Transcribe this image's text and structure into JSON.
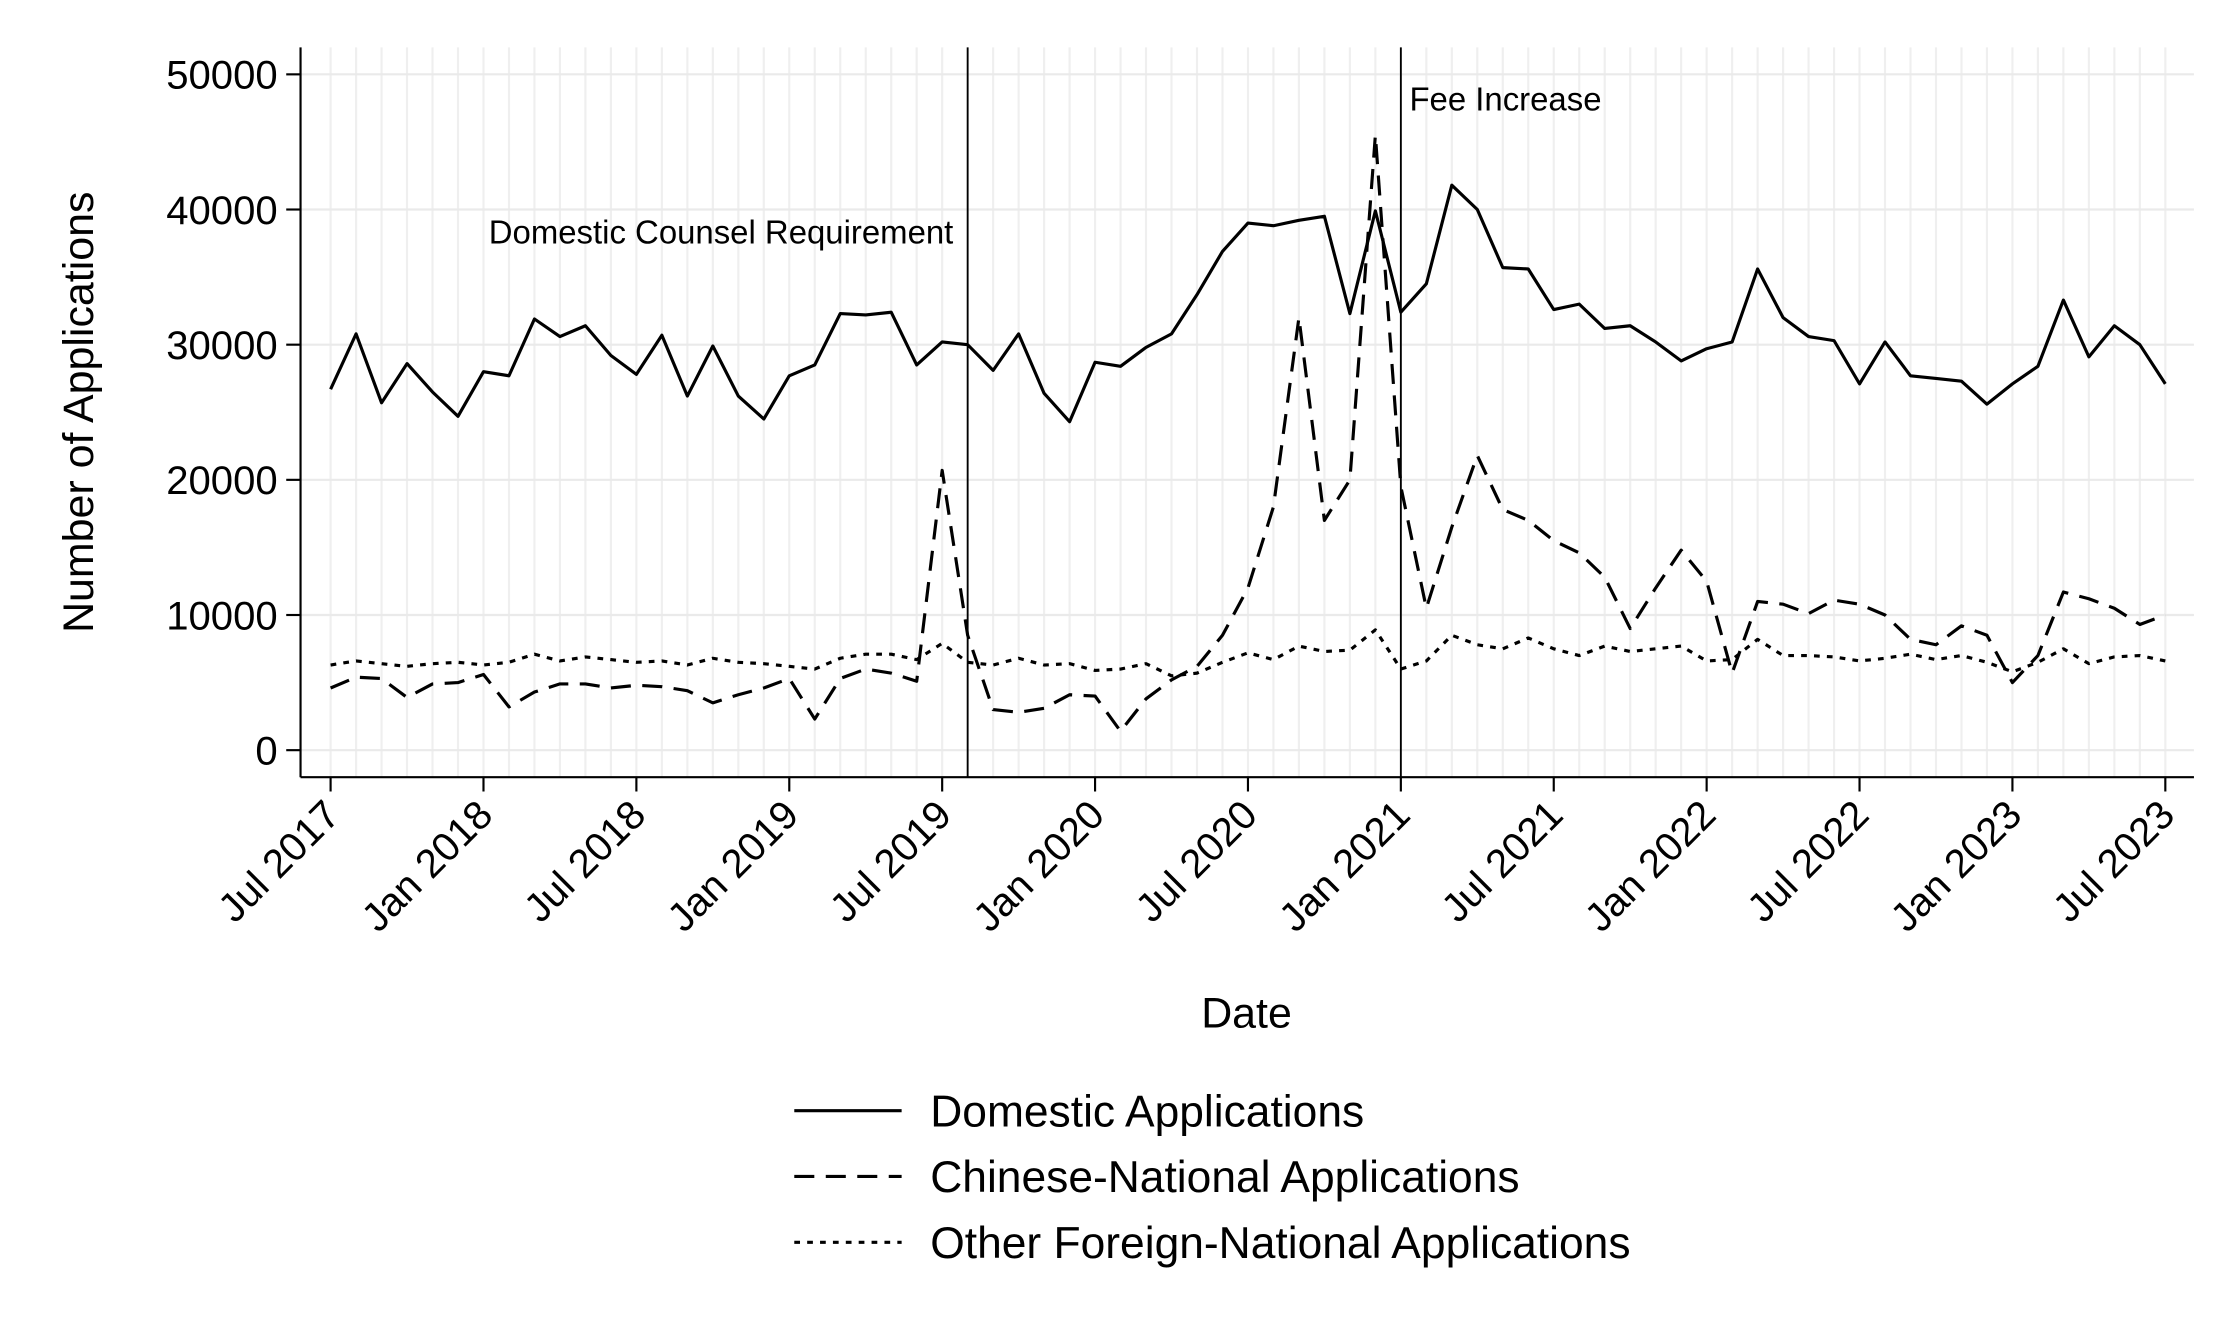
{
  "chart_data": {
    "type": "line",
    "x_label": "Date",
    "y_label": "Number of Applications",
    "categories": [
      "Jul 2017",
      null,
      null,
      null,
      null,
      null,
      "Jan 2018",
      null,
      null,
      null,
      null,
      null,
      "Jul 2018",
      null,
      null,
      null,
      null,
      null,
      "Jan 2019",
      null,
      null,
      null,
      null,
      null,
      "Jul 2019",
      null,
      null,
      null,
      null,
      null,
      "Jan 2020",
      null,
      null,
      null,
      null,
      null,
      "Jul 2020",
      null,
      null,
      null,
      null,
      null,
      "Jan 2021",
      null,
      null,
      null,
      null,
      null,
      "Jul 2021",
      null,
      null,
      null,
      null,
      null,
      "Jan 2022",
      null,
      null,
      null,
      null,
      null,
      "Jul 2022",
      null,
      null,
      null,
      null,
      null,
      "Jan 2023",
      null,
      null,
      null,
      null,
      null,
      "Jul 2023"
    ],
    "ylim": [
      -2000,
      52000
    ],
    "yticks": [
      0,
      10000,
      20000,
      30000,
      40000,
      50000
    ],
    "grid": true,
    "legend": "bottom",
    "series": [
      {
        "name": "Domestic Applications",
        "color": "#000000",
        "dash": "solid",
        "values": [
          26700,
          30800,
          25700,
          28600,
          26500,
          24700,
          28000,
          27700,
          31900,
          30600,
          31400,
          29200,
          27800,
          30700,
          26200,
          29900,
          26200,
          24500,
          27700,
          28500,
          32300,
          32200,
          32400,
          28500,
          30200,
          30000,
          28100,
          30800,
          26400,
          24300,
          28700,
          28400,
          29800,
          30800,
          33700,
          36900,
          39000,
          38800,
          39200,
          39500,
          32300,
          39900,
          32400,
          34500,
          41800,
          40000,
          35700,
          35600,
          32600,
          33000,
          31200,
          31400,
          30200,
          28800,
          29700,
          30200,
          35600,
          32000,
          30600,
          30300,
          27100,
          30200,
          27700,
          27500,
          27300,
          25600,
          27100,
          28400,
          33300,
          29100,
          31400,
          30000,
          27100
        ]
      },
      {
        "name": "Chinese-National Applications",
        "color": "#000000",
        "dash": "dashed",
        "values": [
          4600,
          5400,
          5300,
          3900,
          4900,
          5000,
          5600,
          3200,
          4300,
          4900,
          4900,
          4600,
          4800,
          4700,
          4400,
          3500,
          4100,
          4600,
          5300,
          2300,
          5300,
          6000,
          5700,
          5100,
          20700,
          8500,
          3000,
          2800,
          3100,
          4100,
          4000,
          1400,
          3800,
          5200,
          6200,
          8500,
          12000,
          18000,
          32000,
          17000,
          20000,
          45500,
          19500,
          10500,
          16500,
          21800,
          17800,
          17000,
          15500,
          14600,
          12800,
          9000,
          12000,
          14800,
          12500,
          5700,
          11000,
          10800,
          10100,
          11100,
          10800,
          10000,
          8200,
          7800,
          9200,
          8500,
          5000,
          7000,
          11700,
          11200,
          10500,
          9300,
          10000
        ]
      },
      {
        "name": "Other Foreign-National Applications",
        "color": "#000000",
        "dash": "dotted",
        "values": [
          6300,
          6600,
          6400,
          6200,
          6400,
          6500,
          6300,
          6500,
          7100,
          6600,
          6900,
          6700,
          6500,
          6600,
          6300,
          6800,
          6500,
          6400,
          6200,
          6000,
          6800,
          7100,
          7100,
          6700,
          7900,
          6500,
          6300,
          6800,
          6300,
          6400,
          5900,
          6000,
          6400,
          5500,
          5700,
          6500,
          7200,
          6700,
          7700,
          7300,
          7400,
          8900,
          6000,
          6600,
          8500,
          7800,
          7500,
          8300,
          7500,
          7000,
          7700,
          7300,
          7500,
          7700,
          6600,
          6700,
          8200,
          7000,
          7000,
          6900,
          6600,
          6800,
          7100,
          6700,
          7000,
          6500,
          5800,
          6500,
          7500,
          6400,
          6900,
          7000,
          6600
        ]
      }
    ],
    "annotations": [
      {
        "label": "Domestic Counsel Requirement",
        "index": 25,
        "side": "left"
      },
      {
        "label": "Fee Increase",
        "index": 42,
        "side": "right"
      }
    ]
  }
}
